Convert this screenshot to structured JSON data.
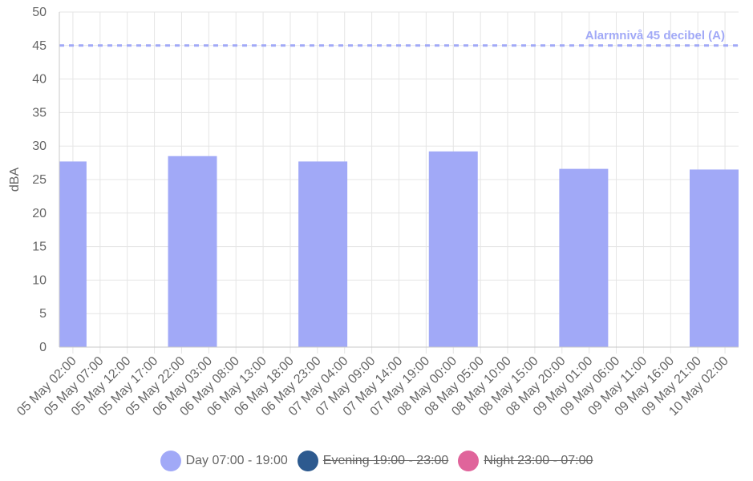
{
  "chart_data": {
    "type": "bar",
    "ylabel": "dBA",
    "ylim": [
      0,
      50
    ],
    "yticks": [
      0,
      5,
      10,
      15,
      20,
      25,
      30,
      35,
      40,
      45,
      50
    ],
    "grid": true,
    "legend_position": "bottom",
    "categories": [
      "05 May 02:00",
      "05 May 07:00",
      "05 May 12:00",
      "05 May 17:00",
      "05 May 22:00",
      "06 May 03:00",
      "06 May 08:00",
      "06 May 13:00",
      "06 May 18:00",
      "06 May 23:00",
      "07 May 04:00",
      "07 May 09:00",
      "07 May 14:00",
      "07 May 19:00",
      "08 May 00:00",
      "08 May 05:00",
      "08 May 10:00",
      "08 May 15:00",
      "08 May 20:00",
      "09 May 01:00",
      "09 May 06:00",
      "09 May 11:00",
      "09 May 16:00",
      "09 May 21:00",
      "10 May 02:00"
    ],
    "bars": [
      {
        "start": "05 May 02:00",
        "end": "05 May 07:00",
        "value": 27.7
      },
      {
        "start": "05 May 22:00",
        "end": "06 May 07:00",
        "value": 28.5
      },
      {
        "start": "06 May 22:00",
        "end": "07 May 07:00",
        "value": 27.7
      },
      {
        "start": "07 May 22:00",
        "end": "08 May 07:00",
        "value": 29.2
      },
      {
        "start": "08 May 22:00",
        "end": "09 May 07:00",
        "value": 26.6
      },
      {
        "start": "09 May 22:00",
        "end": "10 May 07:00",
        "value": 26.5
      }
    ],
    "threshold": {
      "value": 45,
      "label": "Alarmnivå 45 decibel (A)",
      "color": "#a1a9f7",
      "style": "dashed"
    },
    "series": [
      {
        "name": "Day 07:00 - 19:00",
        "color": "#a1a9f7",
        "hidden": false
      },
      {
        "name": "Evening 19:00 - 23:00",
        "color": "#2d5a8f",
        "hidden": true
      },
      {
        "name": "Night 23:00 - 07:00",
        "color": "#e0649b",
        "hidden": true
      }
    ],
    "colors": {
      "grid": "#e5e5e5",
      "axis": "#c8c8c8",
      "text": "#666666"
    }
  }
}
